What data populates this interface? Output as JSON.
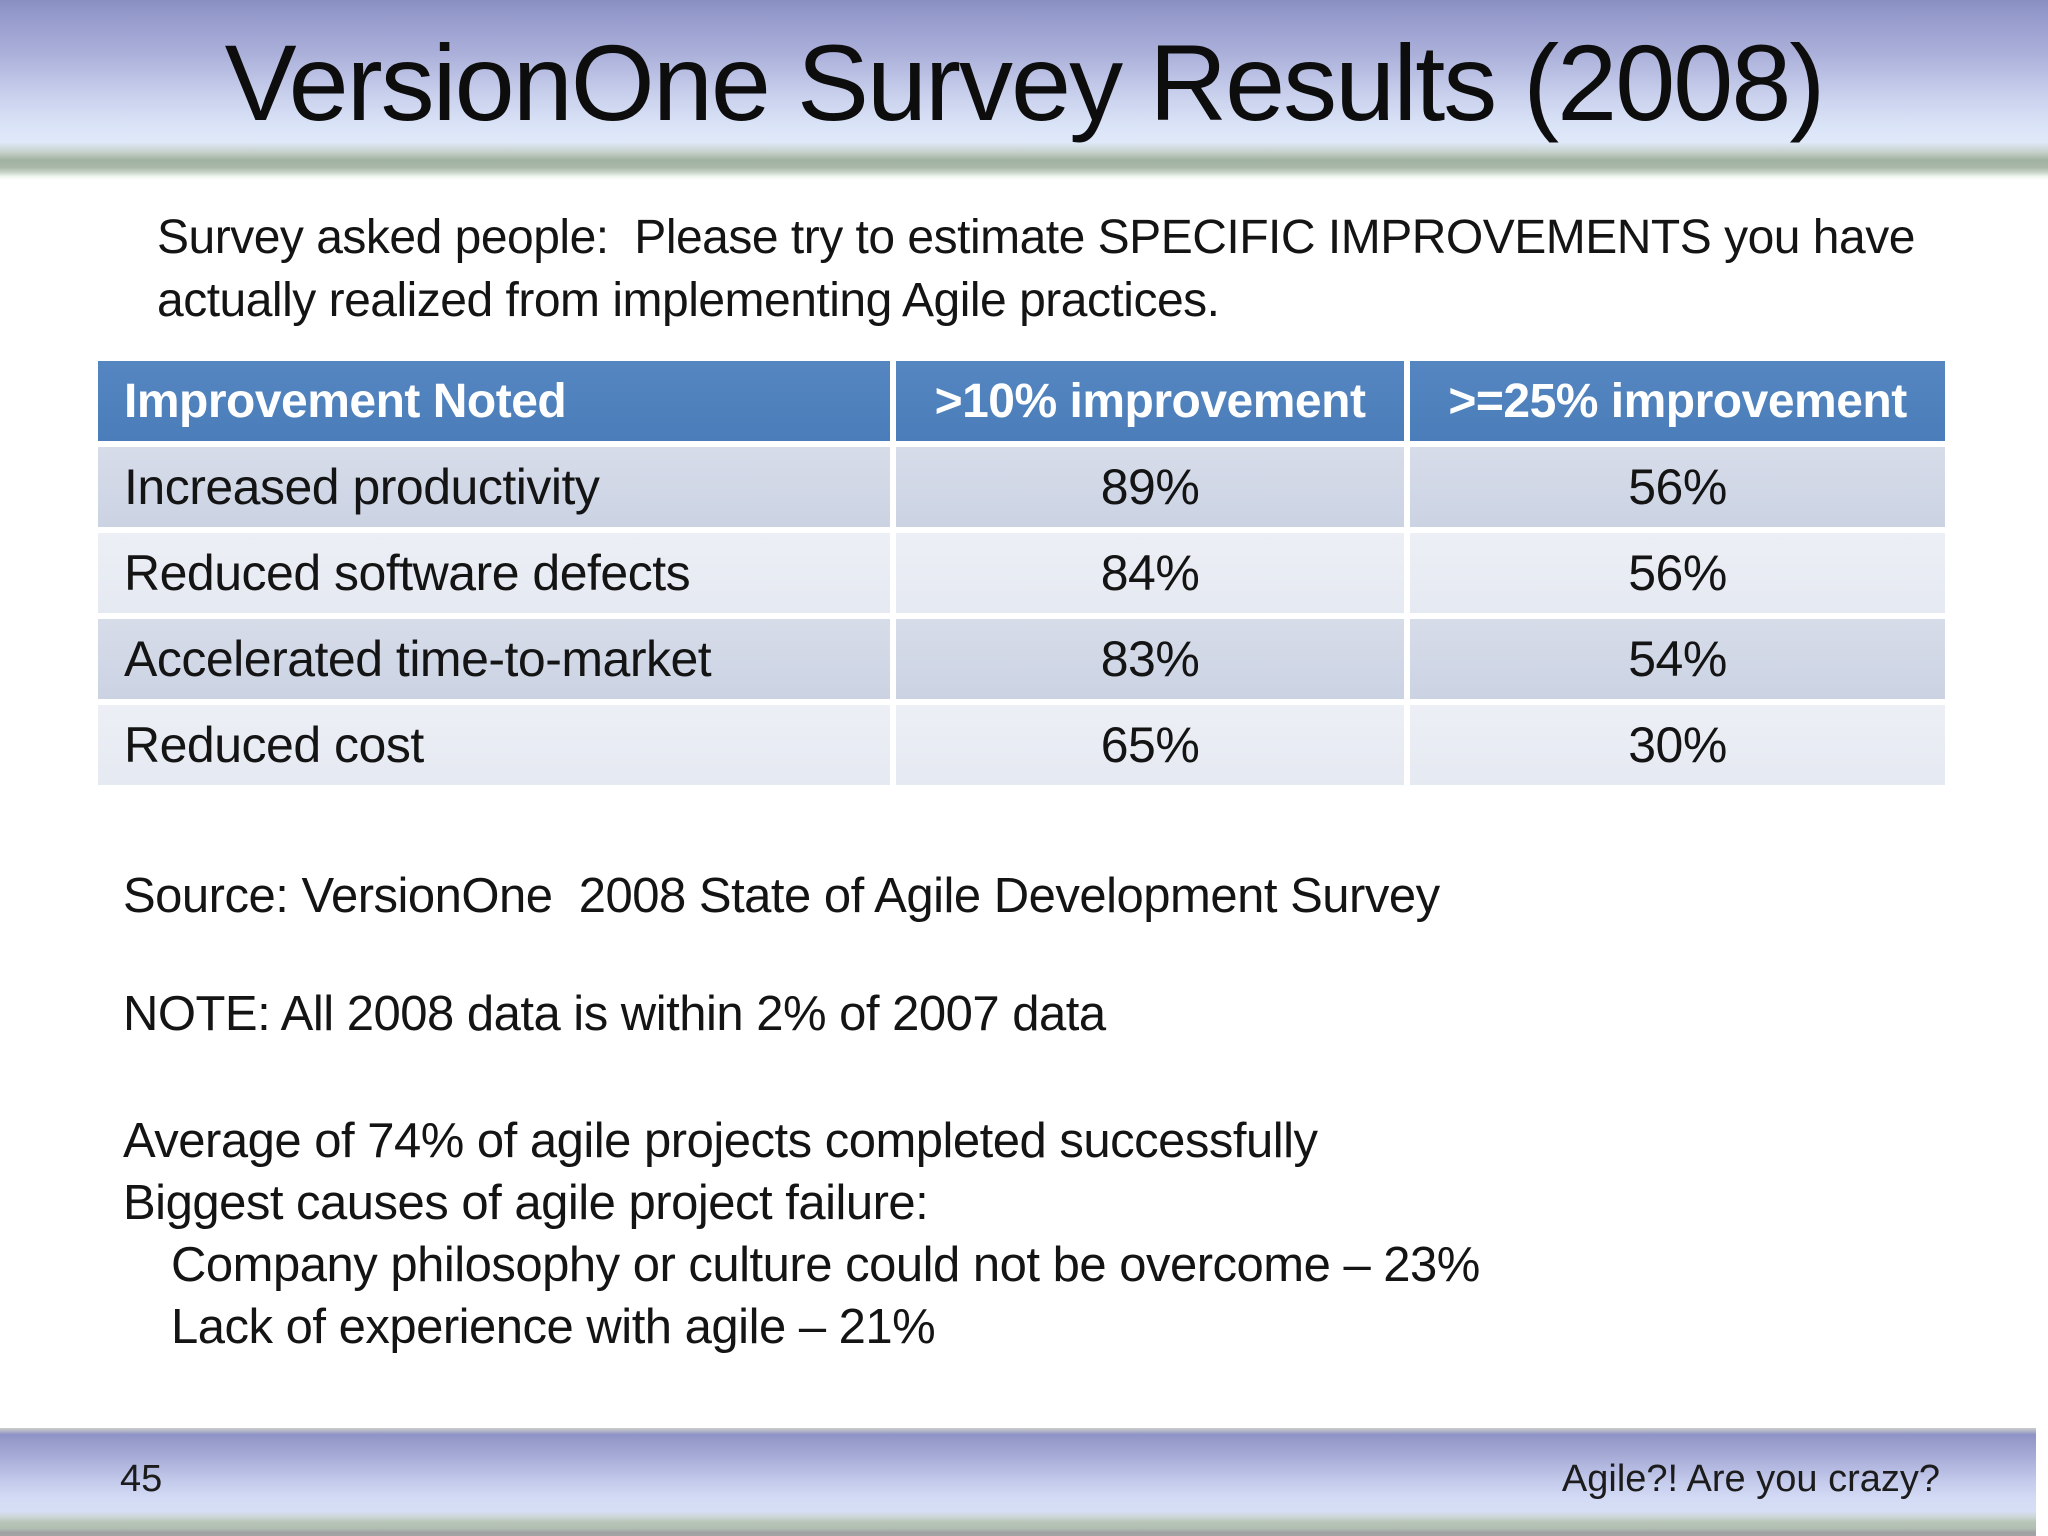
{
  "title": "VersionOne Survey Results (2008)",
  "intro": "Survey asked people:  Please try to estimate SPECIFIC IMPROVEMENTS you have\nactually realized from implementing Agile practices.",
  "table": {
    "col_headers": [
      "Improvement Noted",
      ">10% improvement",
      ">=25% improvement"
    ],
    "rows": [
      {
        "label": "Increased productivity",
        "gt10": "89%",
        "ge25": "56%"
      },
      {
        "label": "Reduced software defects",
        "gt10": "84%",
        "ge25": "56%"
      },
      {
        "label": "Accelerated time-to-market",
        "gt10": "83%",
        "ge25": "54%"
      },
      {
        "label": "Reduced cost",
        "gt10": "65%",
        "ge25": "30%"
      }
    ]
  },
  "source": "Source: VersionOne  2008 State of Agile Development Survey",
  "note": "NOTE: All 2008 data is within 2% of 2007 data",
  "stats": [
    "Average of 74% of agile projects completed successfully",
    "Biggest causes of agile project failure:",
    "Company philosophy or culture could not be overcome – 23%",
    "Lack of experience with agile – 21%"
  ],
  "footer": {
    "slide_number": "45",
    "deck_title": "Agile?! Are you crazy?"
  },
  "colors": {
    "table_header_bg": "#4d80bc",
    "table_header_text": "#ffffff",
    "row_band_dark": "#d0d7e5",
    "row_band_light": "#e9ecf4",
    "band_gradient_top": "#9095c8",
    "band_gradient_light": "#dfe9f9",
    "band_green_edge": "#a3b2a3",
    "body_text": "#141414"
  }
}
